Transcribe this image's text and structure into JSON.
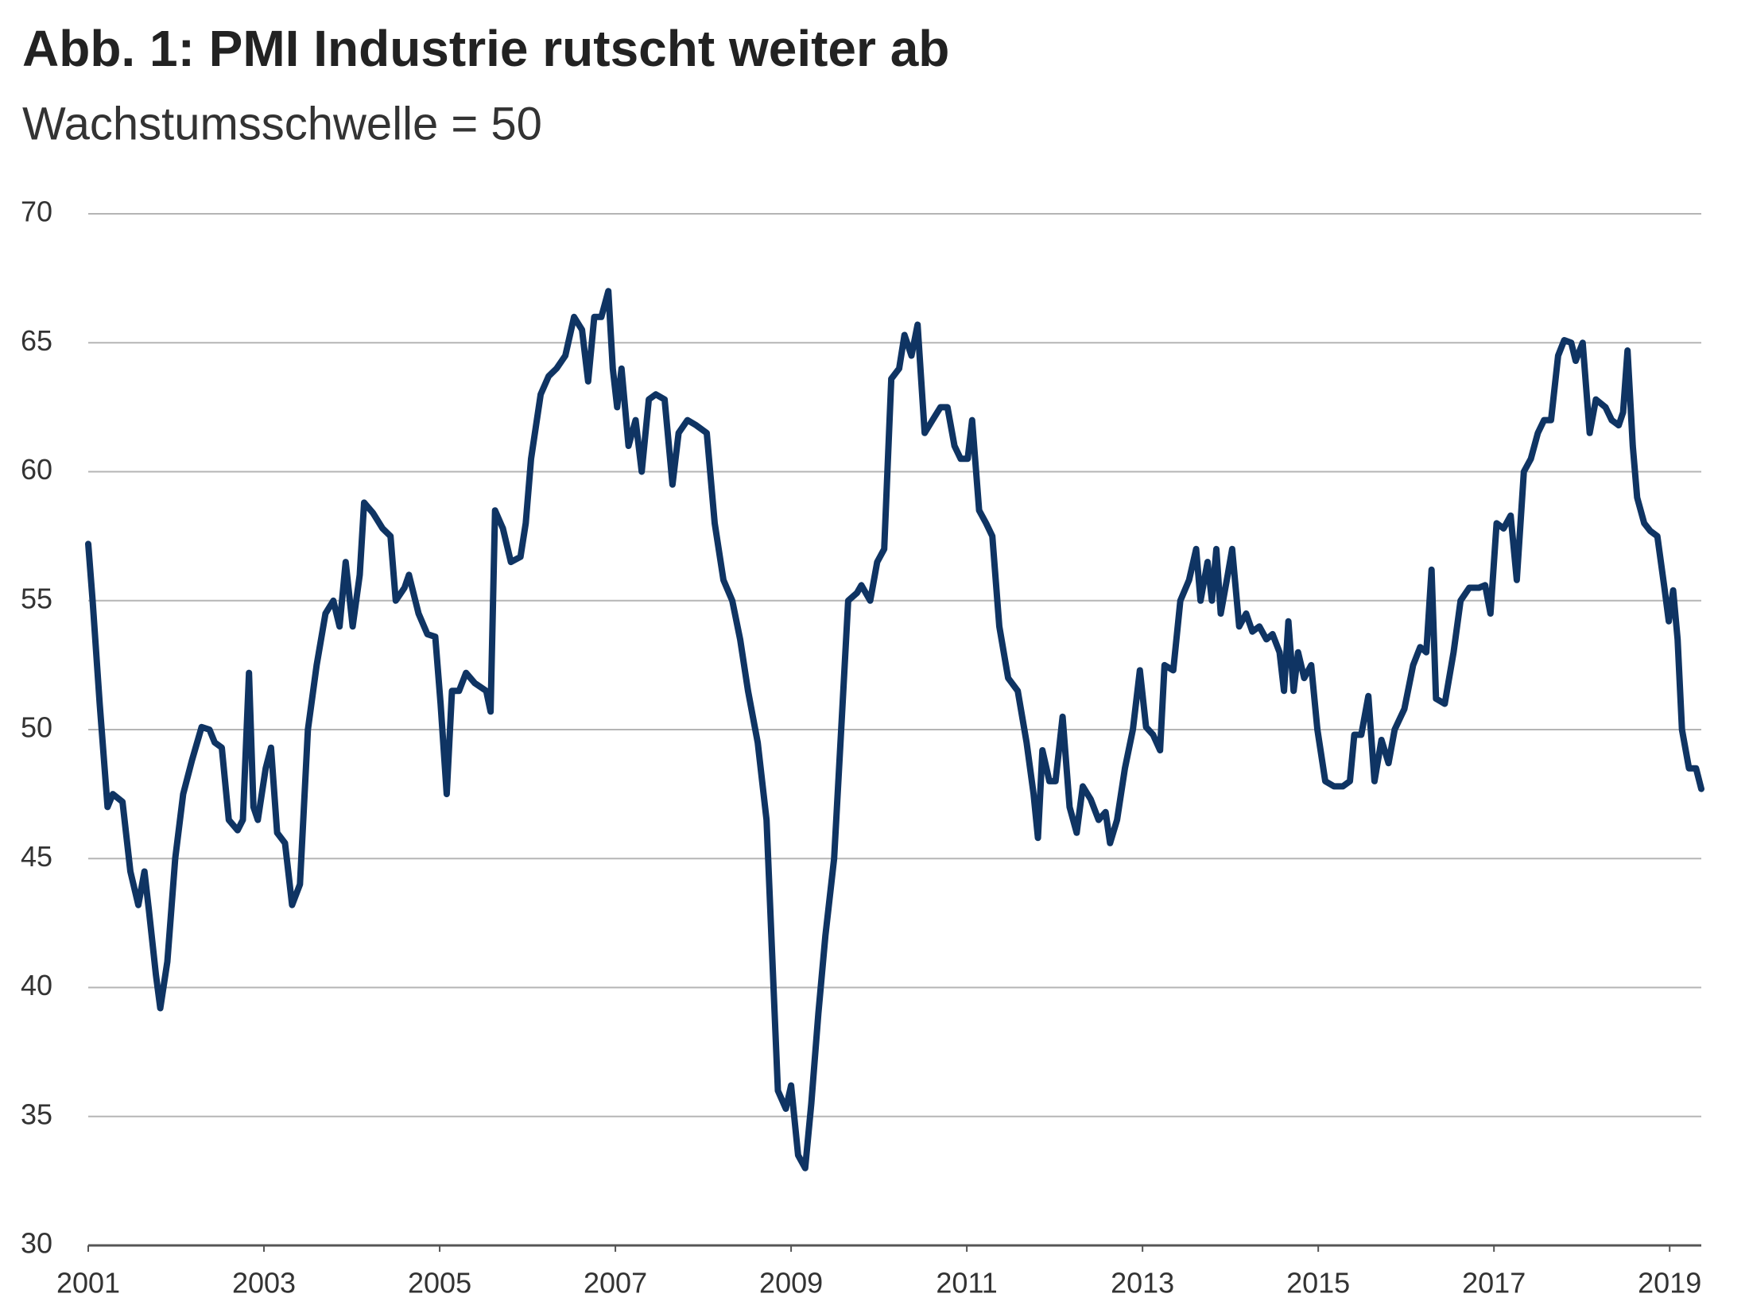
{
  "chart_data": {
    "type": "line",
    "title": "Abb. 1: PMI Industrie rutscht weiter ab",
    "subtitle": "Wachstumsschwelle = 50",
    "xlim": [
      2001,
      2019.36
    ],
    "xticks": [
      2001,
      2003,
      2005,
      2007,
      2009,
      2011,
      2013,
      2015,
      2017,
      2019
    ],
    "ylim": [
      30,
      70
    ],
    "yticks": [
      30,
      35,
      40,
      45,
      50,
      55,
      60,
      65,
      70
    ],
    "grid": true,
    "x": [
      2001.0,
      2001.05,
      2001.13,
      2001.22,
      2001.28,
      2001.39,
      2001.48,
      2001.57,
      2001.64,
      2001.69,
      2001.77,
      2001.82,
      2001.9,
      2001.99,
      2002.08,
      2002.18,
      2002.29,
      2002.38,
      2002.44,
      2002.52,
      2002.6,
      2002.7,
      2002.76,
      2002.83,
      2002.88,
      2002.93,
      2003.02,
      2003.08,
      2003.15,
      2003.24,
      2003.32,
      2003.41,
      2003.5,
      2003.6,
      2003.7,
      2003.79,
      2003.86,
      2003.93,
      2004.01,
      2004.09,
      2004.14,
      2004.24,
      2004.35,
      2004.44,
      2004.5,
      2004.6,
      2004.65,
      2004.76,
      2004.86,
      2004.95,
      2005.01,
      2005.08,
      2005.14,
      2005.22,
      2005.3,
      2005.4,
      2005.53,
      2005.58,
      2005.63,
      2005.72,
      2005.81,
      2005.92,
      2005.98,
      2006.04,
      2006.15,
      2006.24,
      2006.33,
      2006.43,
      2006.53,
      2006.62,
      2006.69,
      2006.76,
      2006.84,
      2006.92,
      2006.97,
      2007.02,
      2007.07,
      2007.15,
      2007.23,
      2007.3,
      2007.38,
      2007.46,
      2007.56,
      2007.65,
      2007.72,
      2007.82,
      2007.92,
      2008.04,
      2008.13,
      2008.23,
      2008.33,
      2008.42,
      2008.51,
      2008.62,
      2008.72,
      2008.8,
      2008.85,
      2008.94,
      2009.0,
      2009.08,
      2009.16,
      2009.23,
      2009.31,
      2009.39,
      2009.49,
      2009.57,
      2009.65,
      2009.75,
      2009.8,
      2009.9,
      2009.98,
      2010.06,
      2010.14,
      2010.23,
      2010.29,
      2010.37,
      2010.44,
      2010.52,
      2010.61,
      2010.7,
      2010.78,
      2010.86,
      2010.93,
      2011.01,
      2011.06,
      2011.14,
      2011.22,
      2011.29,
      2011.37,
      2011.47,
      2011.58,
      2011.68,
      2011.76,
      2011.81,
      2011.86,
      2011.94,
      2012.01,
      2012.09,
      2012.17,
      2012.25,
      2012.32,
      2012.41,
      2012.5,
      2012.58,
      2012.63,
      2012.71,
      2012.8,
      2012.89,
      2012.97,
      2013.04,
      2013.12,
      2013.2,
      2013.25,
      2013.35,
      2013.43,
      2013.53,
      2013.61,
      2013.66,
      2013.74,
      2013.79,
      2013.84,
      2013.89,
      2013.97,
      2014.02,
      2014.1,
      2014.18,
      2014.25,
      2014.33,
      2014.41,
      2014.48,
      2014.56,
      2014.61,
      2014.66,
      2014.72,
      2014.77,
      2014.84,
      2014.92,
      2014.99,
      2015.08,
      2015.18,
      2015.28,
      2015.36,
      2015.41,
      2015.49,
      2015.57,
      2015.64,
      2015.72,
      2015.8,
      2015.87,
      2015.98,
      2016.08,
      2016.16,
      2016.23,
      2016.29,
      2016.34,
      2016.44,
      2016.54,
      2016.62,
      2016.72,
      2016.83,
      2016.9,
      2016.96,
      2017.03,
      2017.11,
      2017.19,
      2017.26,
      2017.34,
      2017.42,
      2017.5,
      2017.57,
      2017.65,
      2017.73,
      2017.8,
      2017.88,
      2017.93,
      2018.01,
      2018.09,
      2018.16,
      2018.27,
      2018.34,
      2018.42,
      2018.47,
      2018.52,
      2018.58,
      2018.63,
      2018.71,
      2018.78,
      2018.86,
      2018.94,
      2018.99,
      2019.04,
      2019.09,
      2019.14,
      2019.22,
      2019.3,
      2019.36
    ],
    "series": [
      {
        "name": "PMI Industrie",
        "color": "#0f3463",
        "values": [
          57.2,
          55,
          51,
          47,
          47.5,
          47.2,
          44.5,
          43.2,
          44.5,
          43,
          40.5,
          39.2,
          41,
          45,
          47.5,
          48.8,
          50.1,
          50,
          49.5,
          49.3,
          46.5,
          46.1,
          46.5,
          52.2,
          47,
          46.5,
          48.5,
          49.3,
          46,
          45.6,
          43.2,
          44,
          50,
          52.5,
          54.5,
          55,
          54,
          56.5,
          54,
          56,
          58.8,
          58.4,
          57.8,
          57.5,
          55,
          55.5,
          56,
          54.5,
          53.7,
          53.6,
          51,
          47.5,
          51.5,
          51.5,
          52.2,
          51.8,
          51.5,
          50.7,
          58.5,
          57.8,
          56.5,
          56.7,
          58,
          60.5,
          63,
          63.7,
          64,
          64.5,
          66,
          65.5,
          63.5,
          66,
          66,
          67,
          64,
          62.5,
          64,
          61,
          62,
          60,
          62.8,
          63,
          62.8,
          59.5,
          61.5,
          62,
          61.8,
          61.5,
          58,
          55.8,
          55,
          53.5,
          51.5,
          49.5,
          46.5,
          40,
          36,
          35.3,
          36.2,
          33.5,
          33,
          35.5,
          39,
          42,
          45,
          50,
          55,
          55.3,
          55.6,
          55,
          56.5,
          57,
          63.6,
          64,
          65.3,
          64.5,
          65.7,
          61.5,
          62,
          62.5,
          62.5,
          61,
          60.5,
          60.5,
          62,
          58.5,
          58,
          57.5,
          54,
          52,
          51.5,
          49.5,
          47.5,
          45.8,
          49.2,
          48,
          48,
          50.5,
          47,
          46,
          47.8,
          47.3,
          46.5,
          46.8,
          45.6,
          46.5,
          48.5,
          50,
          52.3,
          50.1,
          49.8,
          49.2,
          52.5,
          52.3,
          55,
          55.8,
          57,
          55,
          56.5,
          55,
          57,
          54.5,
          56,
          57,
          54,
          54.5,
          53.8,
          54,
          53.5,
          53.7,
          53,
          51.5,
          54.2,
          51.5,
          53,
          52,
          52.5,
          50,
          48,
          47.8,
          47.8,
          48,
          49.8,
          49.8,
          51.3,
          48,
          49.6,
          48.7,
          50,
          50.8,
          52.5,
          53.2,
          53,
          56.2,
          51.2,
          51,
          53,
          55,
          55.5,
          55.5,
          55.6,
          54.5,
          58,
          57.8,
          58.3,
          55.8,
          60,
          60.5,
          61.5,
          62,
          62,
          64.5,
          65.1,
          65,
          64.3,
          65,
          61.5,
          62.8,
          62.5,
          62,
          61.8,
          62.3,
          64.7,
          61,
          59,
          58,
          57.7,
          57.5,
          55.5,
          54.2,
          55.4,
          53.5,
          50,
          48.5,
          48.5,
          47.7
        ]
      }
    ]
  }
}
